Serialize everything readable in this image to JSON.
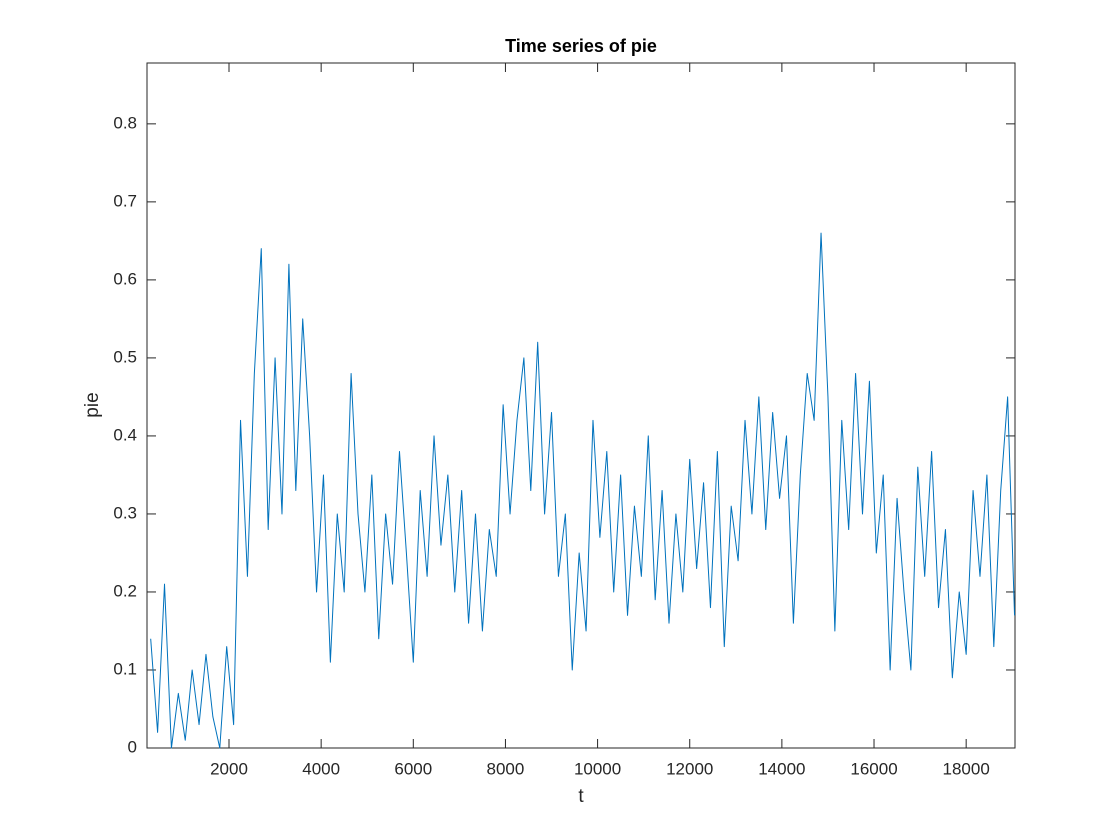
{
  "chart_data": {
    "type": "line",
    "title": "Time series of pie",
    "x_label": "t",
    "y_label": "pie",
    "xlim": [
      220,
      19060
    ],
    "ylim": [
      0,
      0.878
    ],
    "xticks": [
      2000,
      4000,
      6000,
      8000,
      10000,
      12000,
      14000,
      16000,
      18000
    ],
    "yticks": [
      0,
      0.1,
      0.2,
      0.3,
      0.4,
      0.5,
      0.6,
      0.7,
      0.8
    ],
    "grid": false,
    "series": [
      {
        "color": "#0072BD",
        "x": [
          300,
          450,
          600,
          750,
          900,
          1050,
          1200,
          1350,
          1500,
          1650,
          1800,
          1950,
          2100,
          2250,
          2400,
          2550,
          2700,
          2850,
          3000,
          3150,
          3300,
          3450,
          3600,
          3750,
          3900,
          4050,
          4200,
          4350,
          4500,
          4650,
          4800,
          4950,
          5100,
          5250,
          5400,
          5550,
          5700,
          5850,
          6000,
          6150,
          6300,
          6450,
          6600,
          6750,
          6900,
          7050,
          7200,
          7350,
          7500,
          7650,
          7800,
          7950,
          8100,
          8250,
          8400,
          8550,
          8700,
          8850,
          9000,
          9150,
          9300,
          9450,
          9600,
          9750,
          9900,
          10050,
          10200,
          10350,
          10500,
          10650,
          10800,
          10950,
          11100,
          11250,
          11400,
          11550,
          11700,
          11850,
          12000,
          12150,
          12300,
          12450,
          12600,
          12750,
          12900,
          13050,
          13200,
          13350,
          13500,
          13650,
          13800,
          13950,
          14100,
          14250,
          14400,
          14550,
          14700,
          14850,
          15000,
          15150,
          15300,
          15450,
          15600,
          15750,
          15900,
          16050,
          16200,
          16350,
          16500,
          16650,
          16800,
          16950,
          17100,
          17250,
          17400,
          17550,
          17700,
          17850,
          18000,
          18150,
          18300,
          18450,
          18600,
          18750,
          18900,
          19050
        ],
        "values": [
          0.14,
          0.02,
          0.21,
          0.0,
          0.07,
          0.01,
          0.1,
          0.03,
          0.12,
          0.04,
          0.0,
          0.13,
          0.03,
          0.42,
          0.22,
          0.48,
          0.64,
          0.28,
          0.5,
          0.3,
          0.62,
          0.33,
          0.55,
          0.4,
          0.2,
          0.35,
          0.11,
          0.3,
          0.2,
          0.48,
          0.3,
          0.2,
          0.35,
          0.14,
          0.3,
          0.21,
          0.38,
          0.25,
          0.11,
          0.33,
          0.22,
          0.4,
          0.26,
          0.35,
          0.2,
          0.33,
          0.16,
          0.3,
          0.15,
          0.28,
          0.22,
          0.44,
          0.3,
          0.42,
          0.5,
          0.33,
          0.52,
          0.3,
          0.43,
          0.22,
          0.3,
          0.1,
          0.25,
          0.15,
          0.42,
          0.27,
          0.38,
          0.2,
          0.35,
          0.17,
          0.31,
          0.22,
          0.4,
          0.19,
          0.33,
          0.16,
          0.3,
          0.2,
          0.37,
          0.23,
          0.34,
          0.18,
          0.38,
          0.13,
          0.31,
          0.24,
          0.42,
          0.3,
          0.45,
          0.28,
          0.43,
          0.32,
          0.4,
          0.16,
          0.35,
          0.48,
          0.42,
          0.66,
          0.45,
          0.15,
          0.42,
          0.28,
          0.48,
          0.3,
          0.47,
          0.25,
          0.35,
          0.1,
          0.32,
          0.2,
          0.1,
          0.36,
          0.22,
          0.38,
          0.18,
          0.28,
          0.09,
          0.2,
          0.12,
          0.33,
          0.22,
          0.35,
          0.13,
          0.33,
          0.45,
          0.17
        ]
      }
    ]
  }
}
